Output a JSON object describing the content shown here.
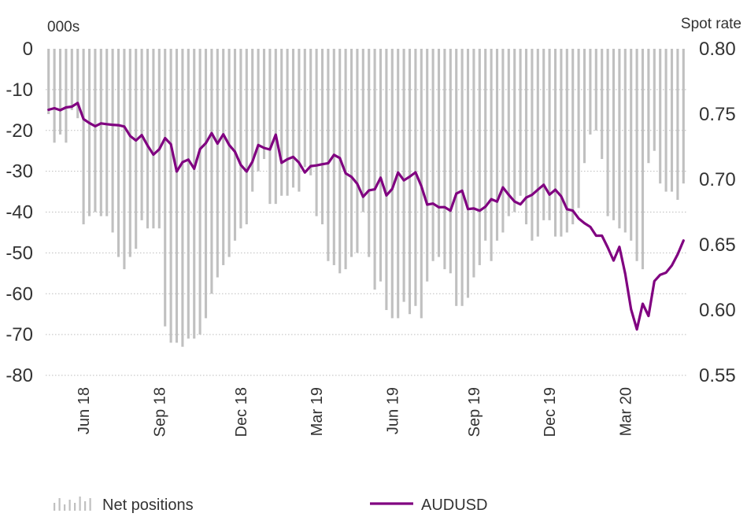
{
  "chart_data": {
    "type": "bar+line",
    "left_axis": {
      "unit": "000s",
      "ticks": [
        0,
        -10,
        -20,
        -30,
        -40,
        -50,
        -60,
        -70,
        -80
      ],
      "range": [
        -80,
        0
      ]
    },
    "right_axis": {
      "unit": "Spot rate",
      "ticks": [
        "0.80",
        "0.75",
        "0.70",
        "0.65",
        "0.60",
        "0.55"
      ],
      "range": [
        0.55,
        0.8
      ]
    },
    "x_tick_labels": [
      "Jun 18",
      "Sep 18",
      "Dec 18",
      "Mar 19",
      "Jun 19",
      "Sep 19",
      "Dec 19",
      "Mar 20"
    ],
    "grid": true,
    "legend_position": "bottom",
    "series": [
      {
        "name": "Net positions",
        "type": "bar",
        "axis": "left",
        "color": "#c0c0c0",
        "values": [
          -16,
          -23,
          -21,
          -23,
          -15,
          -17,
          -43,
          -41,
          -40,
          -41,
          -41,
          -45,
          -51,
          -54,
          -51,
          -49,
          -42,
          -44,
          -44,
          -44,
          -68,
          -72,
          -72,
          -73,
          -71,
          -71,
          -70,
          -66,
          -60,
          -56,
          -53,
          -51,
          -47,
          -44,
          -43,
          -35,
          -30,
          -27,
          -38,
          -38,
          -36,
          -36,
          -34,
          -35,
          -29,
          -31,
          -41,
          -43,
          -52,
          -53,
          -55,
          -54,
          -51,
          -50,
          -40,
          -51,
          -59,
          -57,
          -64,
          -66,
          -66,
          -62,
          -65,
          -63,
          -66,
          -57,
          -52,
          -51,
          -54,
          -55,
          -63,
          -63,
          -61,
          -56,
          -53,
          -47,
          -52,
          -47,
          -45,
          -41,
          -40,
          -36,
          -43,
          -47,
          -46,
          -42,
          -42,
          -46,
          -46,
          -45,
          -43,
          -39,
          -28,
          -21,
          -20,
          -27,
          -41,
          -42,
          -44,
          -45,
          -47,
          -52,
          -54,
          -28,
          -25,
          -33,
          -35,
          -35,
          -37,
          -33
        ]
      },
      {
        "name": "AUDUSD",
        "type": "line",
        "axis": "right",
        "color": "#800080",
        "values": [
          0.7533,
          0.7545,
          0.753,
          0.7551,
          0.7557,
          0.7585,
          0.7462,
          0.7432,
          0.7407,
          0.7429,
          0.7423,
          0.7418,
          0.7415,
          0.7405,
          0.7333,
          0.7298,
          0.7339,
          0.7259,
          0.719,
          0.7231,
          0.7316,
          0.7269,
          0.7061,
          0.7132,
          0.7152,
          0.7082,
          0.7232,
          0.7278,
          0.7354,
          0.7274,
          0.7345,
          0.7264,
          0.7212,
          0.7111,
          0.7061,
          0.7136,
          0.7263,
          0.7241,
          0.7229,
          0.7343,
          0.7127,
          0.7154,
          0.7172,
          0.7128,
          0.7053,
          0.7102,
          0.7107,
          0.7116,
          0.7124,
          0.7188,
          0.7164,
          0.7047,
          0.702,
          0.6966,
          0.6867,
          0.6916,
          0.6924,
          0.7013,
          0.6878,
          0.6928,
          0.7053,
          0.6993,
          0.7021,
          0.7054,
          0.6948,
          0.6807,
          0.6815,
          0.6787,
          0.6788,
          0.6761,
          0.6891,
          0.6914,
          0.6773,
          0.6778,
          0.676,
          0.6791,
          0.6849,
          0.683,
          0.6939,
          0.6882,
          0.6831,
          0.6809,
          0.6861,
          0.6882,
          0.6921,
          0.6959,
          0.6884,
          0.6921,
          0.6871,
          0.6772,
          0.6761,
          0.6701,
          0.6665,
          0.6637,
          0.6569,
          0.6569,
          0.6479,
          0.6379,
          0.6484,
          0.6277,
          0.6006,
          0.5852,
          0.6048,
          0.5955,
          0.6221,
          0.627,
          0.6286,
          0.6341,
          0.6426,
          0.6532
        ]
      }
    ]
  },
  "legend": [
    {
      "label": "Net positions",
      "icon": "bar-swatch-icon",
      "color": "#c0c0c0"
    },
    {
      "label": "AUDUSD",
      "icon": "line-swatch-icon",
      "color": "#800080"
    }
  ]
}
